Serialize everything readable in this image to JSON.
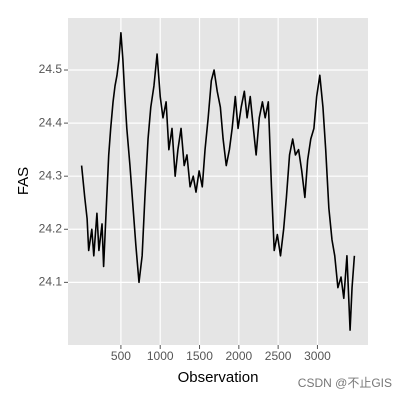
{
  "chart_data": {
    "type": "line",
    "x_label": "Observation",
    "y_label": "FAS",
    "x": [
      0,
      40,
      70,
      90,
      130,
      155,
      195,
      220,
      260,
      280,
      320,
      345,
      370,
      400,
      425,
      450,
      475,
      500,
      525,
      550,
      575,
      615,
      655,
      690,
      730,
      770,
      805,
      845,
      880,
      920,
      960,
      1000,
      1035,
      1075,
      1110,
      1150,
      1190,
      1225,
      1265,
      1305,
      1340,
      1380,
      1420,
      1455,
      1495,
      1535,
      1570,
      1610,
      1650,
      1685,
      1725,
      1765,
      1800,
      1840,
      1880,
      1915,
      1955,
      1990,
      2030,
      2070,
      2105,
      2145,
      2185,
      2220,
      2260,
      2300,
      2335,
      2375,
      2415,
      2450,
      2490,
      2530,
      2570,
      2605,
      2645,
      2685,
      2720,
      2760,
      2800,
      2840,
      2875,
      2915,
      2955,
      2990,
      3030,
      3070,
      3105,
      3145,
      3185,
      3220,
      3260,
      3300,
      3335,
      3375,
      3415,
      3440,
      3470
    ],
    "series": [
      {
        "name": "FAS",
        "color": "#000000",
        "values": [
          24.32,
          24.26,
          24.22,
          24.16,
          24.2,
          24.15,
          24.23,
          24.16,
          24.21,
          24.13,
          24.26,
          24.34,
          24.39,
          24.44,
          24.47,
          24.49,
          24.52,
          24.57,
          24.52,
          24.45,
          24.39,
          24.32,
          24.24,
          24.17,
          24.1,
          24.15,
          24.26,
          24.37,
          24.43,
          24.47,
          24.53,
          24.45,
          24.41,
          24.44,
          24.35,
          24.39,
          24.3,
          24.35,
          24.39,
          24.32,
          24.34,
          24.28,
          24.3,
          24.27,
          24.31,
          24.28,
          24.35,
          24.41,
          24.48,
          24.5,
          24.46,
          24.43,
          24.37,
          24.32,
          24.35,
          24.39,
          24.45,
          24.39,
          24.43,
          24.46,
          24.41,
          24.45,
          24.39,
          24.34,
          24.41,
          24.44,
          24.41,
          24.44,
          24.28,
          24.16,
          24.19,
          24.15,
          24.2,
          24.26,
          24.34,
          24.37,
          24.34,
          24.35,
          24.31,
          24.26,
          24.33,
          24.37,
          24.39,
          24.45,
          24.49,
          24.43,
          24.35,
          24.24,
          24.18,
          24.15,
          24.09,
          24.11,
          24.07,
          24.15,
          24.01,
          24.09,
          24.15
        ]
      }
    ],
    "xlim": [
      -173,
      3643
    ],
    "xticks": [
      500,
      1000,
      1500,
      2000,
      2500,
      3000
    ],
    "ylim": [
      23.982,
      24.598
    ],
    "yticks": [
      24.1,
      24.2,
      24.3,
      24.4,
      24.5
    ],
    "grid": true,
    "background": "#e5e5e5",
    "watermark": "CSDN @不止GIS"
  }
}
